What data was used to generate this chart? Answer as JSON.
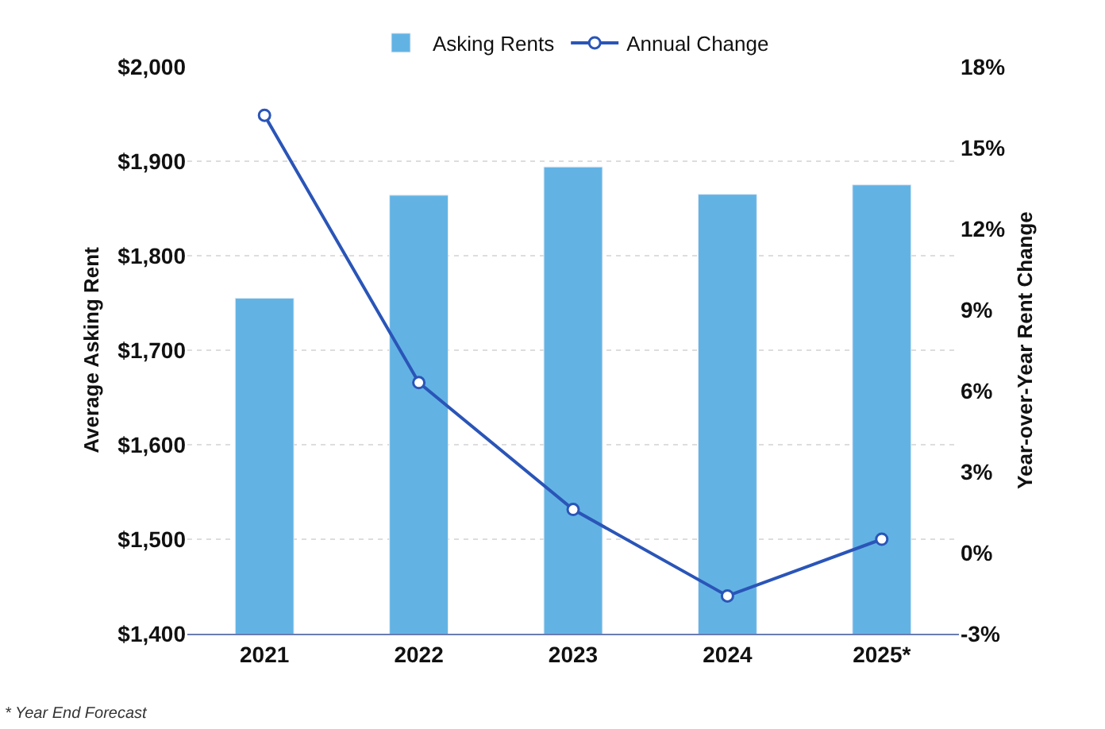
{
  "chart_data": {
    "type": "bar",
    "categories": [
      "2021",
      "2022",
      "2023",
      "2024",
      "2025*"
    ],
    "series": [
      {
        "name": "Asking Rents",
        "color": "#62b3e4",
        "values": [
          1755,
          1864,
          1894,
          1865,
          1875
        ]
      },
      {
        "name": "Annual Change",
        "type": "line",
        "axis": "y2",
        "color": "#2a55b8",
        "marker": "circle",
        "line_style": "solid",
        "values": [
          16.2,
          6.3,
          1.6,
          -1.6,
          0.5
        ]
      }
    ],
    "ylabel": "Average Asking Rent",
    "y2label": "Year-over-Year Rent Change",
    "ylim": [
      1400,
      2000
    ],
    "yticks": [
      {
        "value": 1400,
        "label": "$1,400"
      },
      {
        "value": 1500,
        "label": "$1,500"
      },
      {
        "value": 1600,
        "label": "$1,600"
      },
      {
        "value": 1700,
        "label": "$1,700"
      },
      {
        "value": 1800,
        "label": "$1,800"
      },
      {
        "value": 1900,
        "label": "$1,900"
      },
      {
        "value": 2000,
        "label": "$2,000"
      }
    ],
    "y2lim": [
      -3,
      18
    ],
    "y2ticks": [
      {
        "value": -3,
        "label": "-3%"
      },
      {
        "value": 0,
        "label": "0%"
      },
      {
        "value": 3,
        "label": "3%"
      },
      {
        "value": 6,
        "label": "6%"
      },
      {
        "value": 9,
        "label": "9%"
      },
      {
        "value": 12,
        "label": "12%"
      },
      {
        "value": 15,
        "label": "15%"
      },
      {
        "value": 18,
        "label": "18%"
      }
    ],
    "grid": "y",
    "legend": "top",
    "annotations": [
      "* Year End Forecast"
    ]
  }
}
